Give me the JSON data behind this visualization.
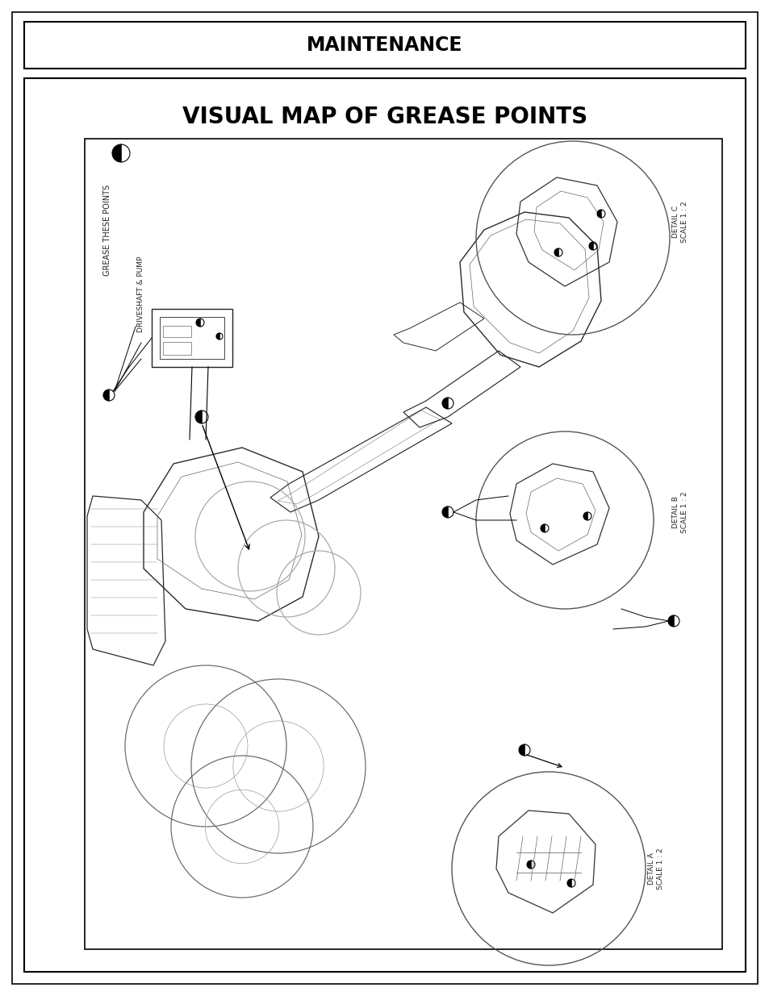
{
  "title_main": "MAINTENANCE",
  "title_sub": "VISUAL MAP OF GREASE POINTS",
  "bg_color": "#ffffff",
  "border_color": "#000000",
  "text_color": "#000000",
  "label_driveshaft": "DRIVESHAFT & PUMP",
  "label_grease": "GREASE THESE POINTS",
  "label_detail_a": "DETAIL A\nSCALE 1 : 2",
  "label_detail_b": "DETAIL B\nSCALE 1 : 2",
  "label_detail_c": "DETAIL C\nSCALE 1 : 2"
}
